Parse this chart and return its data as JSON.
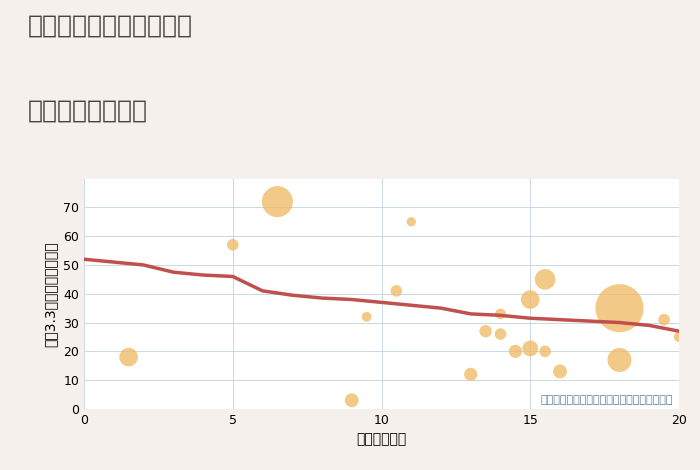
{
  "title_line1": "奈良県奈良市藤ノ木台の",
  "title_line2": "駅距離別土地価格",
  "xlabel": "駅距離（分）",
  "ylabel": "坪（3.3㎡）単価（万円）",
  "annotation": "円の大きさは、取引のあった物件面積を示す",
  "background_color": "#f5f0eb",
  "plot_bg_color": "#ffffff",
  "xlim": [
    0,
    20
  ],
  "ylim": [
    0,
    80
  ],
  "xticks": [
    0,
    5,
    10,
    15,
    20
  ],
  "yticks": [
    0,
    10,
    20,
    30,
    40,
    50,
    60,
    70
  ],
  "scatter_x": [
    1.5,
    5.0,
    6.5,
    9.0,
    9.5,
    10.5,
    11.0,
    13.0,
    13.5,
    14.0,
    14.0,
    14.5,
    15.0,
    15.0,
    15.5,
    15.5,
    16.0,
    18.0,
    18.0,
    19.5,
    20.0
  ],
  "scatter_y": [
    18,
    57,
    72,
    3,
    32,
    41,
    65,
    12,
    27,
    26,
    33,
    20,
    38,
    21,
    45,
    20,
    13,
    35,
    17,
    31,
    25
  ],
  "scatter_size": [
    180,
    70,
    500,
    100,
    50,
    70,
    45,
    90,
    80,
    70,
    60,
    90,
    180,
    130,
    220,
    70,
    100,
    1200,
    300,
    70,
    55
  ],
  "scatter_color": "#f0b860",
  "scatter_alpha": 0.75,
  "trend_x": [
    0,
    1,
    2,
    3,
    4,
    5,
    6,
    7,
    8,
    9,
    10,
    11,
    12,
    13,
    14,
    15,
    16,
    17,
    18,
    19,
    20
  ],
  "trend_y": [
    52,
    51,
    50,
    47.5,
    46.5,
    46,
    41,
    39.5,
    38.5,
    38,
    37,
    36,
    35,
    33,
    32.5,
    31.5,
    31,
    30.5,
    30,
    29,
    27
  ],
  "trend_color": "#c0504d",
  "trend_linewidth": 2.5,
  "grid_color": "#c8d8e8",
  "title_fontsize": 18,
  "axis_label_fontsize": 10,
  "tick_fontsize": 9,
  "annotation_fontsize": 8,
  "annotation_color": "#5a7fa0",
  "title_color": "#444444"
}
